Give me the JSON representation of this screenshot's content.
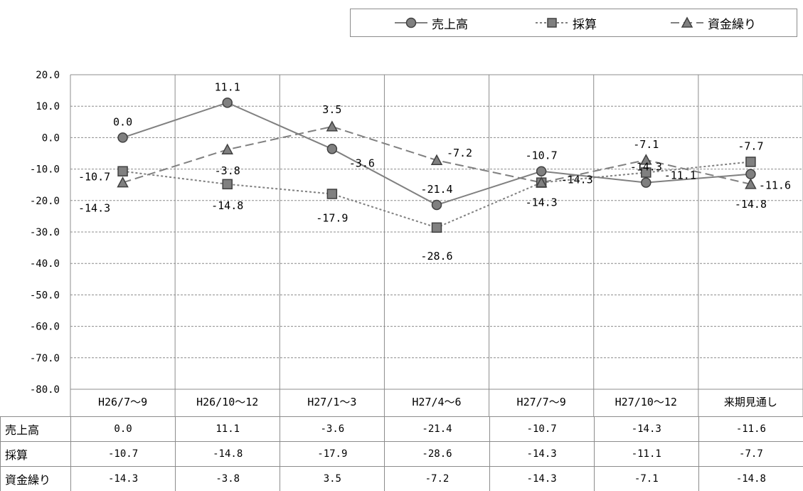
{
  "legend": [
    {
      "name": "売上高",
      "marker": "circle",
      "dash": "solid"
    },
    {
      "name": "採算",
      "marker": "square",
      "dash": "dotted"
    },
    {
      "name": "資金繰り",
      "marker": "triangle",
      "dash": "long-dash"
    }
  ],
  "chart_data": {
    "type": "line",
    "categories": [
      "H26/7～9",
      "H26/10～12",
      "H27/1～3",
      "H27/4～6",
      "H27/7～9",
      "H27/10～12",
      "来期見通し"
    ],
    "ylim": [
      -80.0,
      20.0
    ],
    "ytick_step": 10,
    "y_decimals": 1,
    "grid": "horizontal dashed, vertical category separators",
    "legend_position": "top-right",
    "colors": {
      "series": "#808080",
      "marker_fill": "#808080",
      "marker_edge": "#404040",
      "grid": "#8c8c8c"
    },
    "series": [
      {
        "name": "売上高",
        "values": [
          0.0,
          11.1,
          -3.6,
          -21.4,
          -10.7,
          -14.3,
          -11.6
        ]
      },
      {
        "name": "採算",
        "values": [
          -10.7,
          -14.8,
          -17.9,
          -28.6,
          -14.3,
          -11.1,
          -7.7
        ]
      },
      {
        "name": "資金繰り",
        "values": [
          -14.3,
          -3.8,
          3.5,
          -7.2,
          -14.3,
          -7.1,
          -14.8
        ]
      }
    ]
  },
  "table": {
    "rows": [
      {
        "label": "売上高",
        "values": [
          "0.0",
          "11.1",
          "-3.6",
          "-21.4",
          "-10.7",
          "-14.3",
          "-11.6"
        ]
      },
      {
        "label": "採算",
        "values": [
          "-10.7",
          "-14.8",
          "-17.9",
          "-28.6",
          "-14.3",
          "-11.1",
          "-7.7"
        ]
      },
      {
        "label": "資金繰り",
        "values": [
          "-14.3",
          "-3.8",
          "3.5",
          "-7.2",
          "-14.3",
          "-7.1",
          "-14.8"
        ]
      }
    ]
  }
}
